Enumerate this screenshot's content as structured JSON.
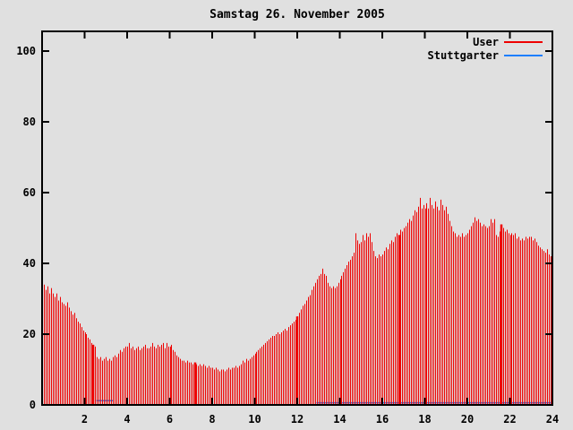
{
  "title": "Samstag 26. November 2005",
  "legend": {
    "items": [
      {
        "label": "User",
        "color": "#ee0000"
      },
      {
        "label": "Stuttgarter",
        "color": "#1e7fff"
      }
    ]
  },
  "axes": {
    "x": {
      "min": 0,
      "max": 24,
      "ticks": [
        2,
        4,
        6,
        8,
        10,
        12,
        14,
        16,
        18,
        20,
        22,
        24
      ]
    },
    "y": {
      "min": 0,
      "max": 100,
      "ticks": [
        0,
        20,
        40,
        60,
        80,
        100
      ]
    }
  },
  "chart_data": {
    "type": "bar",
    "title": "Samstag 26. November 2005",
    "xlabel": "",
    "ylabel": "",
    "xlim": [
      0,
      24
    ],
    "ylim": [
      0,
      105
    ],
    "x_unit": "hour_of_day",
    "sample_interval_hours": 0.08333,
    "legend_position": "top-right-inside",
    "grid": false,
    "series": [
      {
        "name": "User",
        "style": "impulses",
        "color": "#ee0000",
        "values": [
          34,
          32.5,
          33.5,
          31.5,
          33,
          31.5,
          30.5,
          31.5,
          29.5,
          30.5,
          29,
          28.5,
          28,
          29,
          27.5,
          26.5,
          25.5,
          26,
          24.5,
          23.5,
          23,
          22,
          21,
          20.5,
          20,
          19,
          18.5,
          17.5,
          17,
          16.5,
          13.5,
          13,
          13.5,
          12.5,
          13,
          13.5,
          12.5,
          13,
          12.5,
          13.5,
          14,
          13.5,
          14.5,
          15.5,
          15,
          16,
          16.5,
          16.5,
          17.5,
          16,
          16.5,
          15.5,
          16,
          16.5,
          15.5,
          16,
          16.5,
          17,
          16,
          16,
          16.5,
          17.5,
          16.5,
          16,
          17,
          16.5,
          17,
          17.5,
          16,
          17.5,
          16.5,
          16.5,
          17,
          15.5,
          15,
          14,
          13.5,
          13,
          12.5,
          12.5,
          12,
          12.5,
          12,
          12,
          11.5,
          12,
          11.5,
          11,
          11.5,
          11,
          11.5,
          11,
          10.5,
          11,
          10.5,
          10.5,
          10,
          10.5,
          10,
          9.5,
          10,
          10,
          9.5,
          10,
          10.5,
          10,
          10.5,
          10.5,
          11,
          10.5,
          11,
          11.5,
          12.5,
          12,
          13,
          12.5,
          13,
          13.5,
          14,
          14.5,
          15,
          15.5,
          16,
          16.5,
          17,
          17.5,
          18,
          18.5,
          19,
          19.5,
          19.5,
          20,
          20.5,
          20,
          20.5,
          21,
          21.5,
          21,
          22,
          22.5,
          23,
          23.5,
          24,
          25,
          26,
          27,
          28,
          28.5,
          29.5,
          30.5,
          31,
          32.5,
          33.5,
          34.5,
          35.5,
          36.5,
          37,
          38.5,
          37,
          36.5,
          34.5,
          33.5,
          33,
          33.5,
          33,
          33.5,
          34.5,
          35.5,
          36.5,
          37.5,
          38.5,
          39.5,
          40.5,
          41,
          42,
          43,
          48.5,
          46.5,
          45.5,
          46,
          48,
          46.5,
          48.5,
          47.5,
          48.5,
          46,
          43.5,
          42,
          41.5,
          42.5,
          42,
          42.5,
          43.5,
          44.5,
          44,
          45.5,
          46.5,
          46,
          47.5,
          48.5,
          48,
          49.5,
          49,
          50,
          50.5,
          51.5,
          52.5,
          52,
          53.5,
          55,
          54.5,
          56,
          58.5,
          55.5,
          56.5,
          55.5,
          57,
          55.5,
          58.5,
          56.5,
          55.5,
          57.5,
          56,
          55,
          58,
          56.5,
          55,
          56,
          54,
          52,
          50.5,
          49,
          48.5,
          47.5,
          48,
          47.5,
          48.5,
          47.5,
          48,
          48.5,
          49.5,
          50.5,
          51.5,
          53,
          52,
          52.5,
          51.5,
          50.5,
          51,
          50.5,
          50,
          50.5,
          52.5,
          51.5,
          52.5,
          48,
          47.5,
          49,
          51,
          50,
          49,
          49.5,
          48.5,
          48,
          48.5,
          48,
          48.5,
          47,
          47.5,
          46.5,
          47,
          46.5,
          47.5,
          47,
          47.5,
          47.5,
          46.5,
          47,
          46,
          45,
          44.5,
          44,
          43.5,
          43,
          44,
          42.5,
          42,
          42.5
        ],
        "bold_impulses": [
          {
            "hour": 2.4,
            "value": 17
          },
          {
            "hour": 7.2,
            "value": 12
          },
          {
            "hour": 12.0,
            "value": 25
          },
          {
            "hour": 16.8,
            "value": 48
          },
          {
            "hour": 21.6,
            "value": 51
          }
        ]
      },
      {
        "name": "Stuttgarter",
        "style": "line",
        "color": "#1e7fff",
        "segments": [
          {
            "from_hour": 2.55,
            "to_hour": 3.35,
            "value": 1.2
          },
          {
            "from_hour": 12.9,
            "to_hour": 24.0,
            "value": 0.6
          }
        ]
      }
    ]
  }
}
